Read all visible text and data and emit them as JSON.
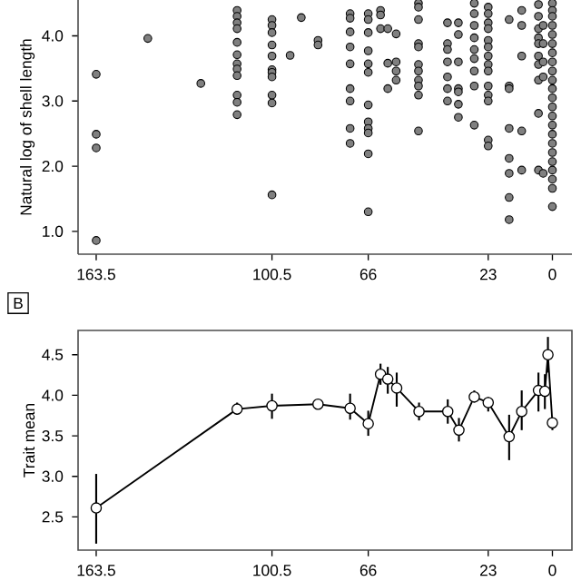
{
  "chart_data": [
    {
      "type": "scatter",
      "ylabel": "Natural log of shell length",
      "color": "#808080",
      "marker": "circle",
      "xlim": [
        170,
        -7
      ],
      "xticks": [
        163.5,
        100.5,
        66,
        23,
        0
      ],
      "ylim": [
        0.65,
        4.55
      ],
      "yticks": [
        {
          "value": 1,
          "label": "1.0"
        },
        {
          "value": 2,
          "label": "2.0"
        },
        {
          "value": 3,
          "label": "3.0"
        },
        {
          "value": 4,
          "label": "4.0"
        }
      ],
      "x": [
        163.5,
        163.5,
        163.5,
        163.5,
        145,
        126,
        113,
        113,
        113,
        113,
        113,
        113,
        113,
        113,
        113,
        113,
        113,
        113,
        100.5,
        100.5,
        100.5,
        100.5,
        100.5,
        100.5,
        100.5,
        100.5,
        100.5,
        100.5,
        100.5,
        94,
        90,
        84,
        84,
        72.5,
        72.5,
        72.5,
        72.5,
        72.5,
        72.5,
        72.5,
        72.5,
        72.5,
        66,
        66,
        66,
        66,
        66,
        66,
        66,
        66,
        66,
        66,
        66,
        66,
        61.6,
        61.6,
        61.6,
        59,
        59,
        59,
        56,
        56,
        56,
        56,
        48,
        48,
        48,
        48,
        48,
        48,
        48,
        48,
        48,
        48,
        48,
        37.6,
        37.6,
        37.6,
        37.6,
        37.6,
        37.6,
        37.6,
        33.7,
        33.7,
        33.7,
        33.7,
        33.7,
        33.7,
        33.7,
        28,
        28,
        28,
        28,
        28,
        28,
        28,
        28,
        28,
        23,
        23,
        23,
        23,
        23,
        23,
        23,
        23,
        23,
        23,
        23,
        23,
        23,
        23,
        15.5,
        15.5,
        15.5,
        15.5,
        15.5,
        15.5,
        15.5,
        15.5,
        11,
        11,
        11,
        11,
        11,
        5,
        5,
        5,
        5,
        5,
        5,
        5,
        5,
        5,
        5,
        3.3,
        3.3,
        3.3,
        3.3,
        3.3,
        0,
        0,
        0,
        0,
        0,
        0,
        0,
        0,
        0,
        0,
        0,
        0,
        0,
        0,
        0,
        0,
        0,
        0,
        0,
        0,
        0,
        0,
        0
      ],
      "values": [
        3.41,
        2.49,
        2.28,
        0.86,
        3.96,
        3.27,
        4.39,
        4.3,
        4.2,
        4.11,
        3.9,
        3.71,
        3.57,
        3.49,
        3.39,
        3.09,
        2.98,
        2.79,
        4.25,
        4.16,
        4.05,
        3.86,
        3.69,
        3.48,
        3.44,
        3.37,
        3.09,
        2.97,
        1.56,
        3.7,
        4.28,
        3.93,
        3.86,
        4.34,
        4.27,
        4.06,
        3.83,
        3.57,
        3.19,
        3.0,
        2.58,
        2.35,
        4.34,
        4.25,
        4.05,
        3.77,
        3.57,
        3.44,
        2.94,
        2.68,
        2.58,
        2.51,
        2.19,
        1.3,
        4.39,
        4.32,
        4.11,
        4.11,
        3.58,
        3.19,
        4.03,
        3.6,
        3.46,
        3.32,
        4.5,
        4.44,
        4.25,
        3.88,
        3.83,
        3.56,
        3.46,
        3.32,
        3.23,
        3.09,
        2.54,
        4.2,
        3.88,
        3.79,
        3.6,
        3.37,
        3.19,
        3.0,
        4.2,
        4.02,
        3.6,
        3.19,
        3.14,
        2.95,
        2.75,
        4.5,
        4.34,
        4.16,
        3.97,
        3.79,
        3.65,
        3.46,
        3.23,
        2.63,
        4.44,
        4.34,
        4.2,
        4.11,
        3.93,
        3.83,
        3.69,
        3.56,
        3.46,
        3.23,
        3.09,
        3.0,
        2.4,
        2.31,
        4.25,
        3.23,
        3.19,
        2.58,
        2.12,
        1.89,
        1.52,
        1.18,
        4.39,
        4.16,
        3.69,
        2.54,
        1.94,
        4.48,
        4.3,
        4.11,
        3.97,
        3.88,
        3.69,
        3.56,
        3.32,
        2.81,
        1.94,
        4.16,
        3.88,
        3.6,
        3.37,
        1.89,
        4.5,
        4.39,
        4.3,
        4.16,
        4.02,
        3.88,
        3.74,
        3.6,
        3.46,
        3.32,
        3.19,
        3.05,
        2.91,
        2.77,
        2.63,
        2.49,
        2.35,
        2.21,
        2.07,
        1.94,
        1.8,
        1.66,
        1.38
      ]
    },
    {
      "type": "line",
      "ylabel": "Trait mean",
      "color": "#000000",
      "marker": "circle",
      "line_style": "solid",
      "annotations": [
        "B"
      ],
      "xlim": [
        170,
        -7
      ],
      "xticks": [
        163.5,
        100.5,
        66,
        23,
        0
      ],
      "ylim": [
        2.09,
        4.8
      ],
      "yticks": [
        2.5,
        {
          "value": 3,
          "label": "3.0"
        },
        3.5,
        {
          "value": 4,
          "label": "4.0"
        },
        4.5
      ],
      "x": [
        163.5,
        113,
        100.5,
        84,
        72.5,
        66,
        61.6,
        59,
        55.8,
        47.8,
        37.5,
        33.5,
        28,
        23,
        15.5,
        11,
        5,
        2.7,
        1.6,
        0
      ],
      "values": [
        2.61,
        3.83,
        3.87,
        3.89,
        3.84,
        3.65,
        4.26,
        4.2,
        4.09,
        3.8,
        3.8,
        3.57,
        3.98,
        3.91,
        3.49,
        3.8,
        4.06,
        4.05,
        4.5,
        3.66
      ],
      "errors": [
        [
          2.17,
          3.03
        ],
        [
          3.76,
          3.91
        ],
        [
          3.71,
          4.02
        ],
        null,
        [
          3.7,
          4.02
        ],
        [
          3.5,
          3.81
        ],
        [
          4.13,
          4.39
        ],
        [
          4.02,
          4.35
        ],
        [
          3.86,
          4.28
        ],
        [
          3.69,
          3.91
        ],
        [
          3.65,
          3.95
        ],
        [
          3.43,
          3.72
        ],
        [
          3.91,
          4.06
        ],
        [
          3.8,
          3.98
        ],
        [
          3.2,
          3.76
        ],
        [
          3.57,
          4.06
        ],
        [
          3.8,
          4.28
        ],
        [
          3.83,
          4.26
        ],
        [
          4.28,
          4.72
        ],
        [
          3.57,
          3.72
        ]
      ]
    }
  ]
}
